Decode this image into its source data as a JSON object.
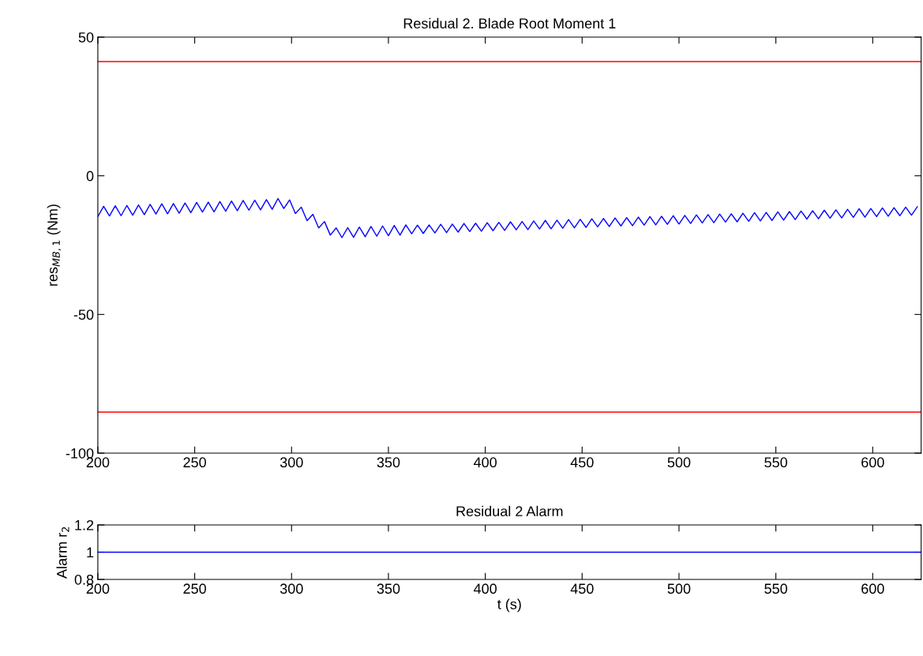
{
  "chart_data": [
    {
      "type": "line",
      "title": "Residual 2. Blade Root Moment 1",
      "ylabel": "res$_{MB,1}$ (Nm)",
      "xlim": [
        200,
        625
      ],
      "xticks": [
        200,
        250,
        300,
        350,
        400,
        450,
        500,
        550,
        600
      ],
      "ylim": [
        -100,
        50
      ],
      "yticks": [
        -100,
        -50,
        0,
        50
      ],
      "grid": false,
      "x": [
        200,
        203,
        206,
        209,
        212,
        215,
        218,
        221,
        224,
        227,
        230,
        233,
        236,
        239,
        242,
        245,
        248,
        251,
        254,
        257,
        260,
        263,
        266,
        269,
        272,
        275,
        278,
        281,
        284,
        287,
        290,
        293,
        296,
        299,
        302,
        305,
        308,
        311,
        314,
        317,
        320,
        323,
        326,
        329,
        332,
        335,
        338,
        341,
        344,
        347,
        350,
        353,
        356,
        359,
        362,
        365,
        368,
        371,
        374,
        377,
        380,
        383,
        386,
        389,
        392,
        395,
        398,
        401,
        404,
        407,
        410,
        413,
        416,
        419,
        422,
        425,
        428,
        431,
        434,
        437,
        440,
        443,
        446,
        449,
        452,
        455,
        458,
        461,
        464,
        467,
        470,
        473,
        476,
        479,
        482,
        485,
        488,
        491,
        494,
        497,
        500,
        503,
        506,
        509,
        512,
        515,
        518,
        521,
        524,
        527,
        530,
        533,
        536,
        539,
        542,
        545,
        548,
        551,
        554,
        557,
        560,
        563,
        566,
        569,
        572,
        575,
        578,
        581,
        584,
        587,
        590,
        593,
        596,
        599,
        602,
        605,
        608,
        611,
        614,
        617,
        620,
        623
      ],
      "series": [
        {
          "color": "#0000ff",
          "values": [
            -14.7,
            -11.0,
            -14.5,
            -10.8,
            -14.4,
            -10.7,
            -14.2,
            -10.5,
            -14.0,
            -10.3,
            -13.8,
            -10.1,
            -13.7,
            -10.0,
            -13.5,
            -9.8,
            -13.3,
            -9.6,
            -13.1,
            -9.5,
            -13.0,
            -9.3,
            -12.8,
            -9.1,
            -12.6,
            -8.9,
            -12.4,
            -8.8,
            -12.3,
            -8.6,
            -12.1,
            -8.2,
            -11.8,
            -8.7,
            -13.6,
            -11.3,
            -16.2,
            -13.9,
            -18.8,
            -16.5,
            -21.4,
            -18.8,
            -22.3,
            -18.7,
            -22.2,
            -18.5,
            -22.0,
            -18.3,
            -21.8,
            -18.1,
            -21.6,
            -17.9,
            -21.4,
            -17.7,
            -20.9,
            -17.8,
            -20.8,
            -17.7,
            -20.6,
            -17.5,
            -20.5,
            -17.4,
            -20.3,
            -17.2,
            -20.1,
            -17.1,
            -20.0,
            -16.9,
            -19.8,
            -16.8,
            -19.7,
            -16.6,
            -19.5,
            -16.5,
            -19.4,
            -16.3,
            -19.2,
            -16.1,
            -19.1,
            -16.0,
            -18.9,
            -15.8,
            -18.8,
            -15.7,
            -18.6,
            -15.5,
            -18.4,
            -15.4,
            -18.3,
            -15.2,
            -18.1,
            -15.1,
            -18.0,
            -14.9,
            -17.8,
            -14.7,
            -17.7,
            -14.6,
            -17.5,
            -14.4,
            -17.4,
            -14.3,
            -17.2,
            -14.1,
            -17.0,
            -14.0,
            -16.9,
            -13.8,
            -16.7,
            -13.7,
            -16.6,
            -13.5,
            -16.4,
            -13.3,
            -16.3,
            -13.2,
            -16.1,
            -13.0,
            -16.0,
            -12.9,
            -15.8,
            -12.7,
            -15.6,
            -12.6,
            -15.5,
            -12.4,
            -15.3,
            -12.3,
            -15.2,
            -12.1,
            -15.0,
            -11.9,
            -14.9,
            -11.8,
            -14.7,
            -11.6,
            -14.6,
            -11.5,
            -14.4,
            -11.3,
            -14.2,
            -11.2
          ]
        }
      ],
      "ref_lines": [
        {
          "axis": "y",
          "value": 41.2,
          "color": "#ff0000"
        },
        {
          "axis": "y",
          "value": -85.2,
          "color": "#ff0000"
        }
      ]
    },
    {
      "type": "line",
      "title": "Residual 2 Alarm",
      "xlabel": "t (s)",
      "ylabel": "Alarm r$_{2}$",
      "xlim": [
        200,
        625
      ],
      "xticks": [
        200,
        250,
        300,
        350,
        400,
        450,
        500,
        550,
        600
      ],
      "ylim": [
        0.8,
        1.2
      ],
      "yticks": [
        0.8,
        1,
        1.2
      ],
      "grid": false,
      "x": [
        200,
        625
      ],
      "series": [
        {
          "color": "#0000ff",
          "values": [
            1,
            1
          ]
        }
      ]
    }
  ]
}
